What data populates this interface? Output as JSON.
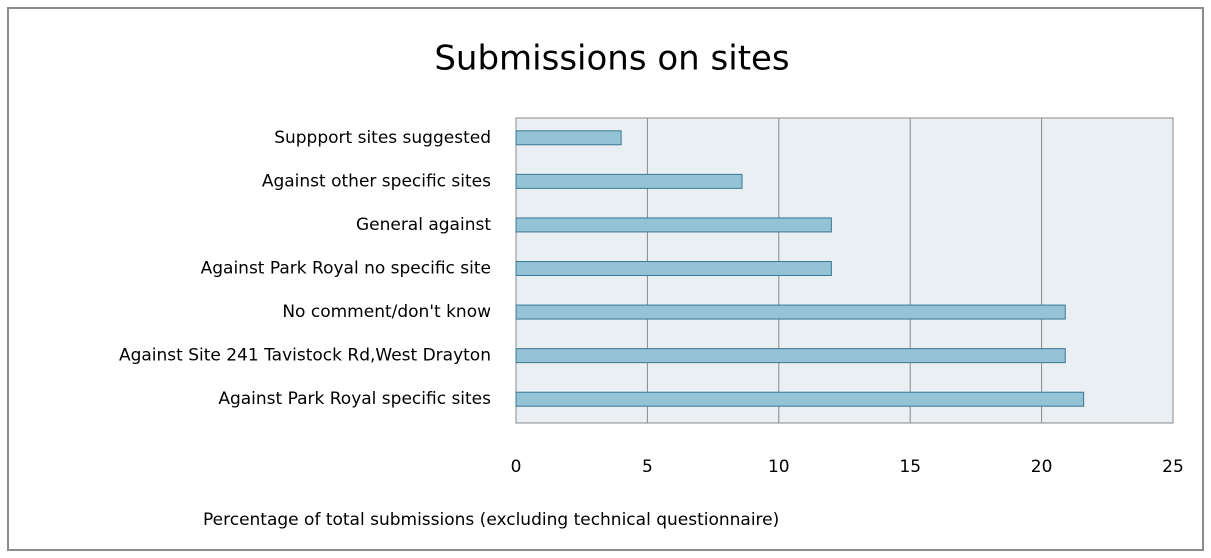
{
  "chart_data": {
    "type": "bar",
    "orientation": "horizontal",
    "title": "Submissions on sites",
    "x_label": "Percentage of total submissions  (excluding technical questionnaire)",
    "categories": [
      "Suppport sites suggested",
      "Against other specific sites",
      "General against",
      "Against Park Royal no specific site",
      "No comment/don't know",
      "Against Site 241 Tavistock Rd,West Drayton",
      "Against Park Royal specific sites"
    ],
    "values": [
      4,
      8.6,
      12,
      12,
      20.9,
      20.9,
      21.6
    ],
    "color": "#93c3d5",
    "xlim": [
      0,
      25
    ],
    "xticks": [
      0,
      5,
      10,
      15,
      20,
      25
    ],
    "grid": true
  }
}
